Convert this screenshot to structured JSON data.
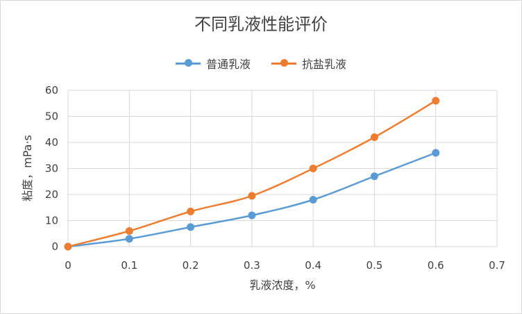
{
  "chart_data": {
    "type": "line",
    "title": "不同乳液性能评价",
    "xlabel": "乳液浓度，%",
    "ylabel": "粘度，mPa·s",
    "xlim": [
      0,
      0.7
    ],
    "ylim": [
      0,
      60
    ],
    "xticks": [
      "0",
      "0.1",
      "0.2",
      "0.3",
      "0.4",
      "0.5",
      "0.6",
      "0.7"
    ],
    "yticks": [
      "0",
      "10",
      "20",
      "30",
      "40",
      "50",
      "60"
    ],
    "grid": true,
    "legend": "top-center",
    "series": [
      {
        "name": "普通乳液",
        "color": "#5b9bd5",
        "x": [
          0,
          0.1,
          0.2,
          0.3,
          0.4,
          0.5,
          0.6
        ],
        "y": [
          0,
          3,
          7.5,
          12,
          18,
          27,
          36
        ]
      },
      {
        "name": "抗盐乳液",
        "color": "#ed7d31",
        "x": [
          0,
          0.1,
          0.2,
          0.3,
          0.4,
          0.5,
          0.6
        ],
        "y": [
          0,
          6,
          13.5,
          19.5,
          30,
          42,
          56
        ]
      }
    ]
  }
}
